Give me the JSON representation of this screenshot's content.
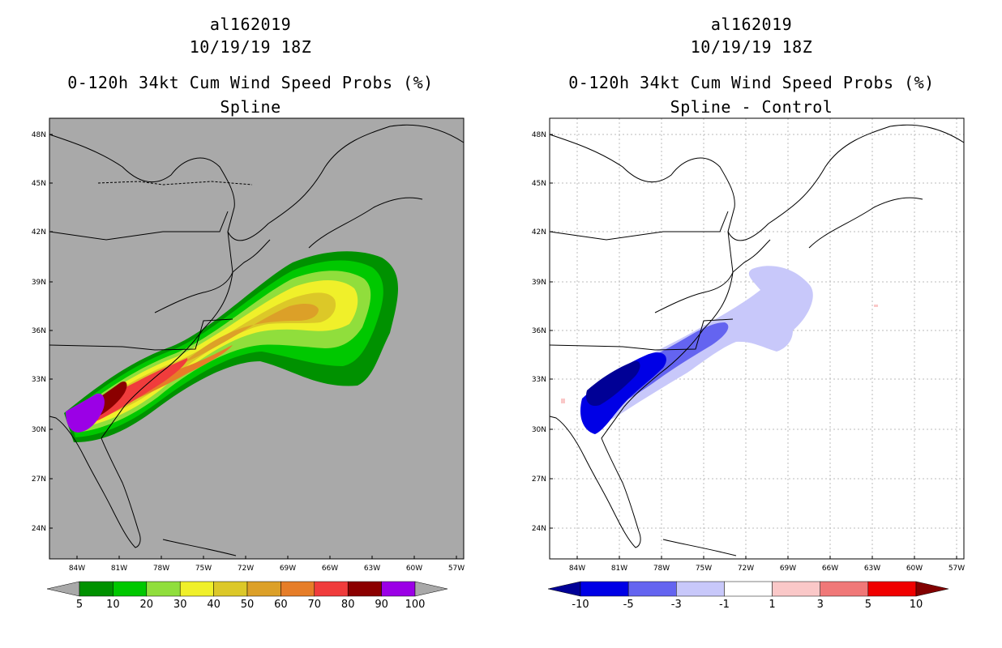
{
  "panels": [
    {
      "storm_id": "al162019",
      "date_time": "10/19/19 18Z",
      "product": "0-120h 34kt Cum Wind Speed Probs (%)",
      "subtitle": "Spline",
      "background": "#a9a9a9",
      "colorbar": {
        "labels": [
          "5",
          "10",
          "20",
          "30",
          "40",
          "50",
          "60",
          "70",
          "80",
          "90",
          "100"
        ],
        "colors": [
          "#009100",
          "#00c800",
          "#90de3c",
          "#f0f02a",
          "#dcc828",
          "#dca028",
          "#e67d28",
          "#f03c3c",
          "#8b0000",
          "#9b00e6"
        ],
        "under_color": "#a9a9a9",
        "over_color": "#a9a9a9"
      }
    },
    {
      "storm_id": "al162019",
      "date_time": "10/19/19 18Z",
      "product": "0-120h 34kt Cum Wind Speed Probs (%)",
      "subtitle": "Spline - Control",
      "background": "#ffffff",
      "colorbar": {
        "labels": [
          "-10",
          "-5",
          "-3",
          "-1",
          "1",
          "3",
          "5",
          "10"
        ],
        "colors": [
          "#0000e6",
          "#6464f0",
          "#c8c8fa",
          "#ffffff",
          "#fac8c8",
          "#f07878",
          "#f00000"
        ],
        "under_color": "#000096",
        "over_color": "#820000"
      }
    }
  ],
  "map": {
    "lat_labels": [
      "48N",
      "45N",
      "42N",
      "39N",
      "36N",
      "33N",
      "30N",
      "27N",
      "24N"
    ],
    "lon_labels": [
      "84W",
      "81W",
      "78W",
      "75W",
      "72W",
      "69W",
      "66W",
      "63W",
      "60W",
      "57W"
    ]
  }
}
